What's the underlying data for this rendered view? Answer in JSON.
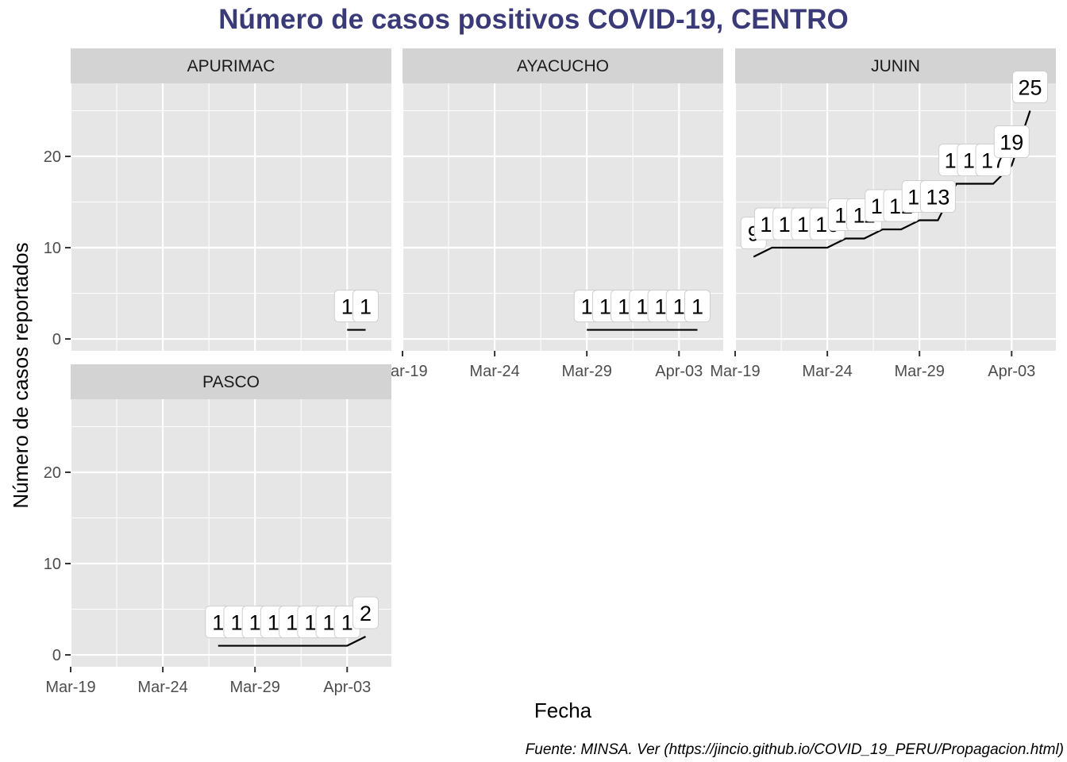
{
  "title": "Número de casos positivos COVID-19, CENTRO",
  "caption": "Fuente: MINSA. Ver (https://jincio.github.io/COVID_19_PERU/Propagacion.html)",
  "colors": {
    "title": "#3a3a78",
    "panel_bg": "#e6e6e6",
    "strip_bg": "#d3d3d3",
    "grid": "#ffffff",
    "line": "#000000"
  },
  "chart_data": {
    "type": "line",
    "xlabel": "Fecha",
    "ylabel": "Número de casos reportados",
    "x_ticks": [
      "Mar-19",
      "Mar-24",
      "Mar-29",
      "Apr-03"
    ],
    "y_ticks": [
      0,
      10,
      20
    ],
    "xlim": [
      "2020-03-19",
      "2020-04-05"
    ],
    "ylim": [
      -1.3,
      28
    ],
    "panels": [
      {
        "name": "APURIMAC",
        "x": [
          "2020-04-03",
          "2020-04-04"
        ],
        "y": [
          1,
          1
        ],
        "labels": [
          "1",
          "1"
        ]
      },
      {
        "name": "AYACUCHO",
        "x": [
          "2020-03-29",
          "2020-03-30",
          "2020-03-31",
          "2020-04-01",
          "2020-04-02",
          "2020-04-03",
          "2020-04-04"
        ],
        "y": [
          1,
          1,
          1,
          1,
          1,
          1,
          1
        ],
        "labels": [
          "1",
          "1",
          "1",
          "1",
          "1",
          "1",
          "1"
        ]
      },
      {
        "name": "JUNIN",
        "x": [
          "2020-03-20",
          "2020-03-21",
          "2020-03-22",
          "2020-03-23",
          "2020-03-24",
          "2020-03-25",
          "2020-03-26",
          "2020-03-27",
          "2020-03-28",
          "2020-03-29",
          "2020-03-30",
          "2020-03-31",
          "2020-04-01",
          "2020-04-02",
          "2020-04-03",
          "2020-04-04"
        ],
        "y": [
          9,
          10,
          10,
          10,
          10,
          11,
          11,
          12,
          12,
          13,
          13,
          17,
          17,
          17,
          19,
          25
        ],
        "labels": [
          "9",
          "10",
          "10",
          "10",
          "10",
          "11",
          "11",
          "12",
          "12",
          "13",
          "13",
          "17",
          "17",
          "17",
          "19",
          "25"
        ]
      },
      {
        "name": "PASCO",
        "x": [
          "2020-03-27",
          "2020-03-28",
          "2020-03-29",
          "2020-03-30",
          "2020-03-31",
          "2020-04-01",
          "2020-04-02",
          "2020-04-03",
          "2020-04-04"
        ],
        "y": [
          1,
          1,
          1,
          1,
          1,
          1,
          1,
          1,
          2
        ],
        "labels": [
          "1",
          "1",
          "1",
          "1",
          "1",
          "1",
          "1",
          "1",
          "2"
        ]
      }
    ]
  }
}
